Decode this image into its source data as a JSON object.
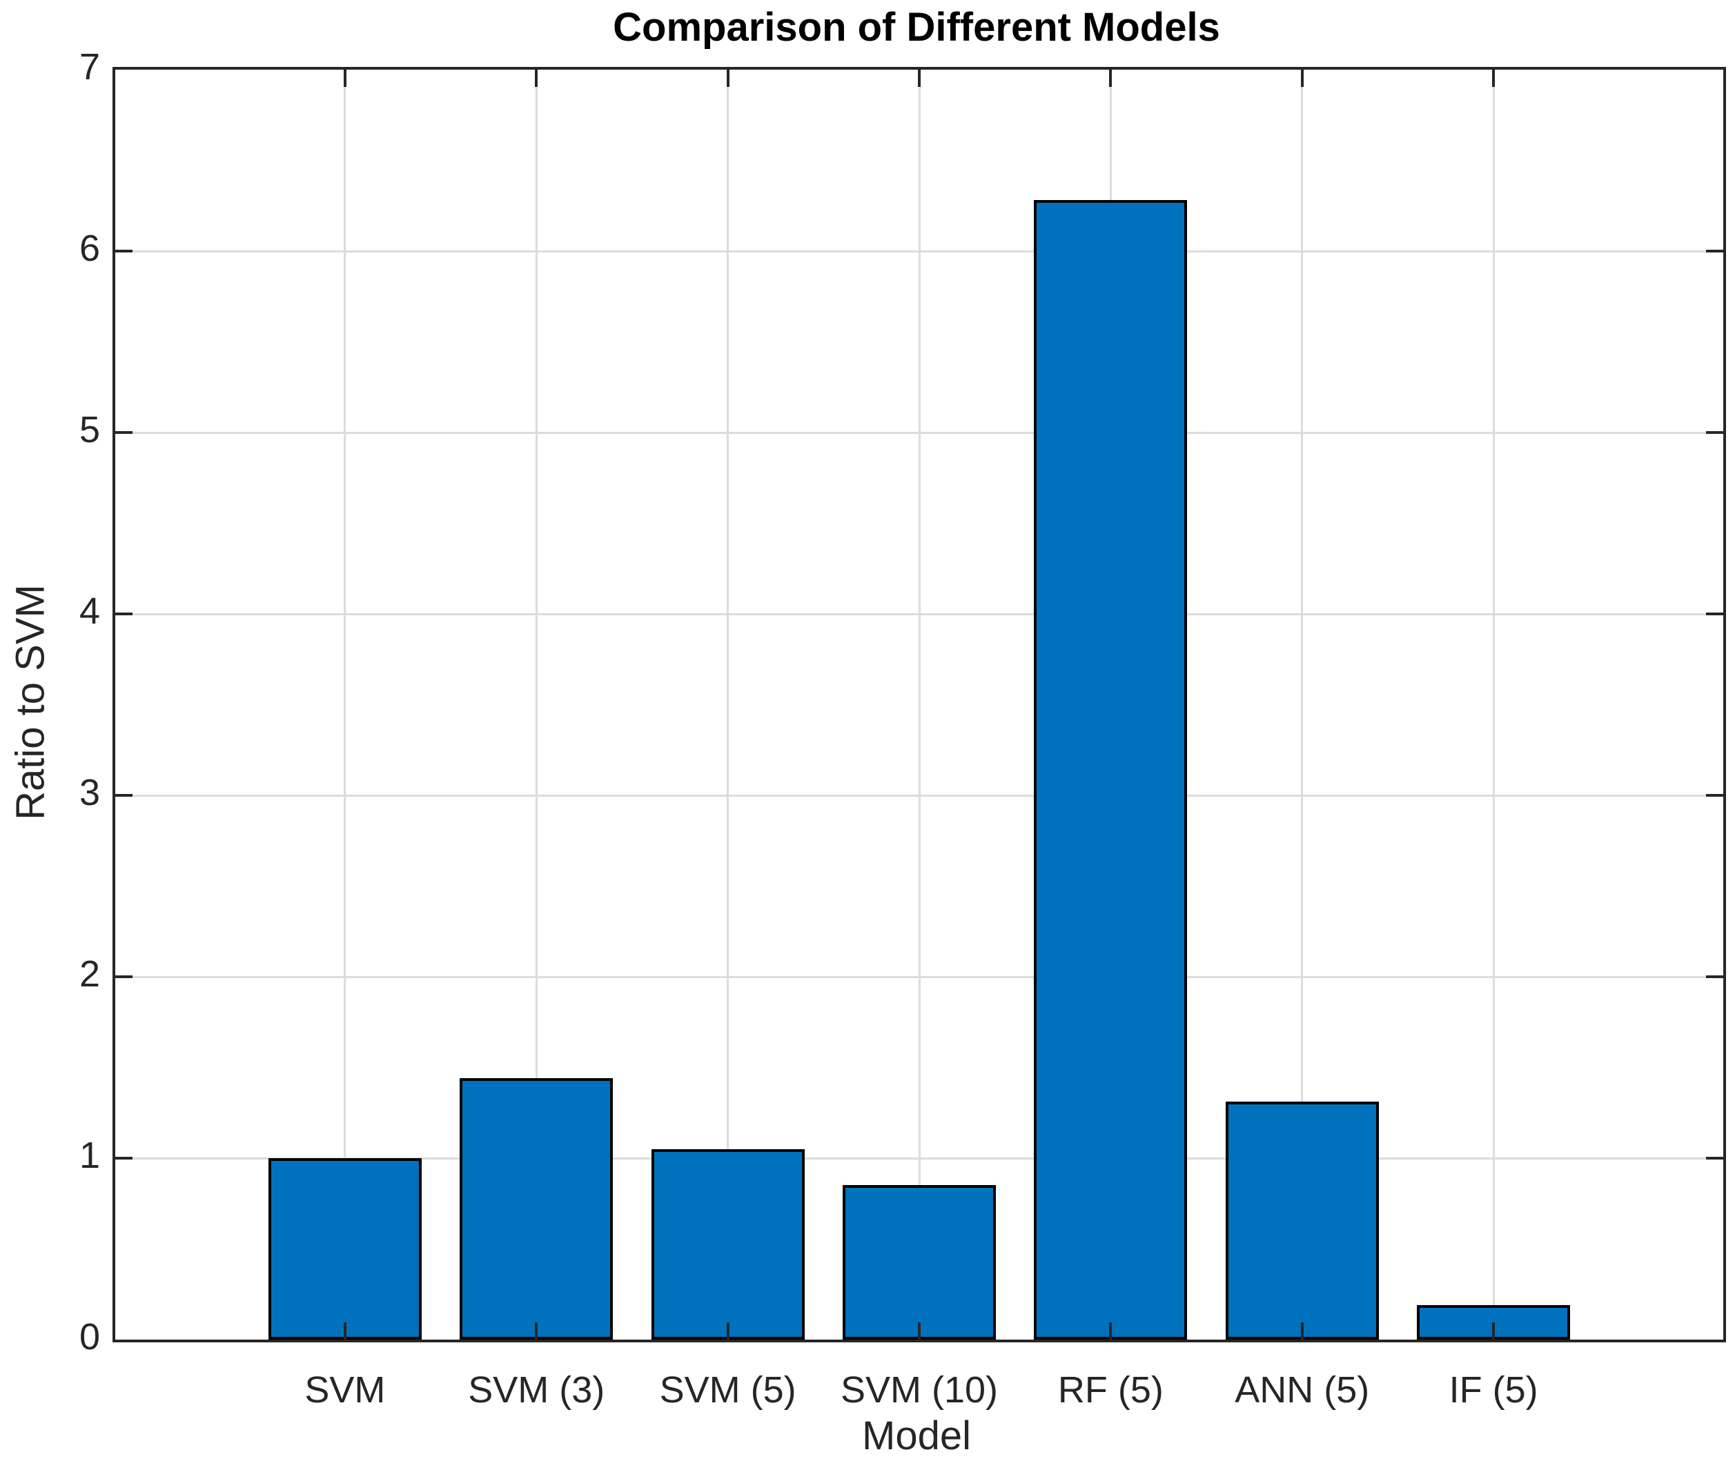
{
  "chart_data": {
    "type": "bar",
    "title": "Comparison of Different Models",
    "xlabel": "Model",
    "ylabel": "Ratio to SVM",
    "categories": [
      "SVM",
      "SVM (3)",
      "SVM (5)",
      "SVM (10)",
      "RF (5)",
      "ANN (5)",
      "IF (5)"
    ],
    "values": [
      1.0,
      1.44,
      1.05,
      0.85,
      6.28,
      1.31,
      0.19
    ],
    "ylim": [
      0,
      7
    ],
    "yticks": [
      0,
      1,
      2,
      3,
      4,
      5,
      6,
      7
    ],
    "xlim": [
      -0.2,
      8.2
    ],
    "bar_width_units": 0.8,
    "grid": "both",
    "legend": "none",
    "bar_color": "#0072BD",
    "bar_edge_color": "#000000",
    "grid_color": "#dcdcdc",
    "axis_color": "#262626",
    "tick_label_color": "#262626",
    "title_color": "#000000"
  }
}
